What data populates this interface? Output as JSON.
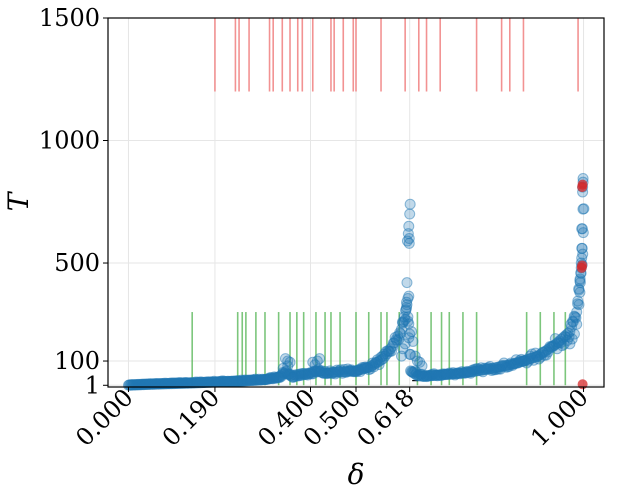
{
  "chart_data": {
    "type": "scatter",
    "xlabel": "δ",
    "ylabel": "T",
    "xlim": [
      -0.045,
      1.045
    ],
    "ylim": [
      -6,
      1500
    ],
    "x_tick_values": [
      0.0,
      0.19,
      0.4,
      0.5,
      0.618,
      1.0
    ],
    "x_tick_labels": [
      "0.000",
      "0.190",
      "0.400",
      "0.500",
      "0.618",
      "1.000"
    ],
    "y_tick_values": [
      1,
      100,
      500,
      1000,
      1500
    ],
    "y_tick_labels": [
      "1",
      "100",
      "500",
      "1000",
      "1500"
    ],
    "grid": true,
    "colors": {
      "points": "#1f77b4",
      "highlight": "#d62728",
      "top_rug": "#f08080",
      "bottom_rug": "#5cb85c",
      "grid": "#e6e6e6"
    },
    "red_points": [
      {
        "x": 0.998,
        "y": 5
      },
      {
        "x": 0.996,
        "y": 480
      },
      {
        "x": 0.997,
        "y": 490
      },
      {
        "x": 0.997,
        "y": 810
      },
      {
        "x": 0.998,
        "y": 820
      }
    ],
    "top_rug": {
      "y_range": [
        1200,
        1500
      ],
      "x": [
        0.19,
        0.235,
        0.243,
        0.265,
        0.31,
        0.318,
        0.338,
        0.355,
        0.372,
        0.382,
        0.405,
        0.445,
        0.452,
        0.472,
        0.494,
        0.5,
        0.555,
        0.608,
        0.638,
        0.655,
        0.685,
        0.765,
        0.82,
        0.838,
        0.868,
        0.988
      ]
    },
    "bottom_rug": {
      "y_range": [
        1,
        300
      ],
      "x": [
        0.14,
        0.24,
        0.25,
        0.258,
        0.28,
        0.3,
        0.33,
        0.355,
        0.37,
        0.385,
        0.412,
        0.432,
        0.445,
        0.465,
        0.5,
        0.528,
        0.555,
        0.568,
        0.595,
        0.635,
        0.665,
        0.688,
        0.705,
        0.735,
        0.765,
        0.875,
        0.905,
        0.935,
        0.96
      ],
      "mark": {
        "x": 0.63,
        "y": 20
      }
    },
    "anchors": [
      [
        0.0,
        1
      ],
      [
        0.05,
        5
      ],
      [
        0.1,
        8
      ],
      [
        0.15,
        11
      ],
      [
        0.19,
        14
      ],
      [
        0.25,
        18
      ],
      [
        0.3,
        24
      ],
      [
        0.33,
        34
      ],
      [
        0.345,
        55
      ],
      [
        0.36,
        35
      ],
      [
        0.38,
        42
      ],
      [
        0.4,
        52
      ],
      [
        0.415,
        60
      ],
      [
        0.43,
        50
      ],
      [
        0.46,
        55
      ],
      [
        0.5,
        60
      ],
      [
        0.53,
        75
      ],
      [
        0.56,
        110
      ],
      [
        0.58,
        160
      ],
      [
        0.6,
        230
      ],
      [
        0.612,
        330
      ],
      [
        0.62,
        60
      ],
      [
        0.635,
        40
      ],
      [
        0.65,
        38
      ],
      [
        0.7,
        45
      ],
      [
        0.75,
        55
      ],
      [
        0.8,
        70
      ],
      [
        0.85,
        90
      ],
      [
        0.9,
        120
      ],
      [
        0.94,
        170
      ],
      [
        0.97,
        220
      ],
      [
        0.985,
        300
      ],
      [
        0.995,
        480
      ],
      [
        1.0,
        800
      ]
    ],
    "extra_points": [
      [
        0.616,
        650
      ],
      [
        0.617,
        600
      ],
      [
        0.617,
        580
      ],
      [
        0.618,
        700
      ],
      [
        0.619,
        740
      ],
      [
        0.615,
        620
      ],
      [
        0.613,
        590
      ],
      [
        0.611,
        340
      ],
      [
        0.61,
        310
      ],
      [
        0.614,
        280
      ],
      [
        0.612,
        420
      ],
      [
        0.616,
        365
      ],
      [
        0.622,
        220
      ],
      [
        0.625,
        180
      ],
      [
        0.63,
        120
      ],
      [
        0.635,
        100
      ],
      [
        0.64,
        95
      ],
      [
        0.645,
        80
      ],
      [
        0.608,
        170
      ],
      [
        0.603,
        150
      ],
      [
        0.6,
        120
      ],
      [
        0.34,
        70
      ],
      [
        0.35,
        100
      ],
      [
        0.355,
        95
      ],
      [
        0.345,
        110
      ],
      [
        0.35,
        80
      ],
      [
        0.405,
        95
      ],
      [
        0.415,
        100
      ],
      [
        0.42,
        110
      ],
      [
        0.41,
        85
      ],
      [
        0.99,
        330
      ],
      [
        0.992,
        380
      ],
      [
        0.993,
        420
      ],
      [
        0.994,
        460
      ],
      [
        0.995,
        500
      ],
      [
        0.996,
        520
      ],
      [
        0.997,
        560
      ],
      [
        0.996,
        640
      ],
      [
        0.998,
        790
      ],
      [
        0.999,
        830
      ],
      [
        0.999,
        845
      ],
      [
        0.998,
        810
      ],
      [
        0.985,
        250
      ],
      [
        0.98,
        210
      ],
      [
        0.975,
        190
      ],
      [
        0.97,
        170
      ]
    ]
  }
}
